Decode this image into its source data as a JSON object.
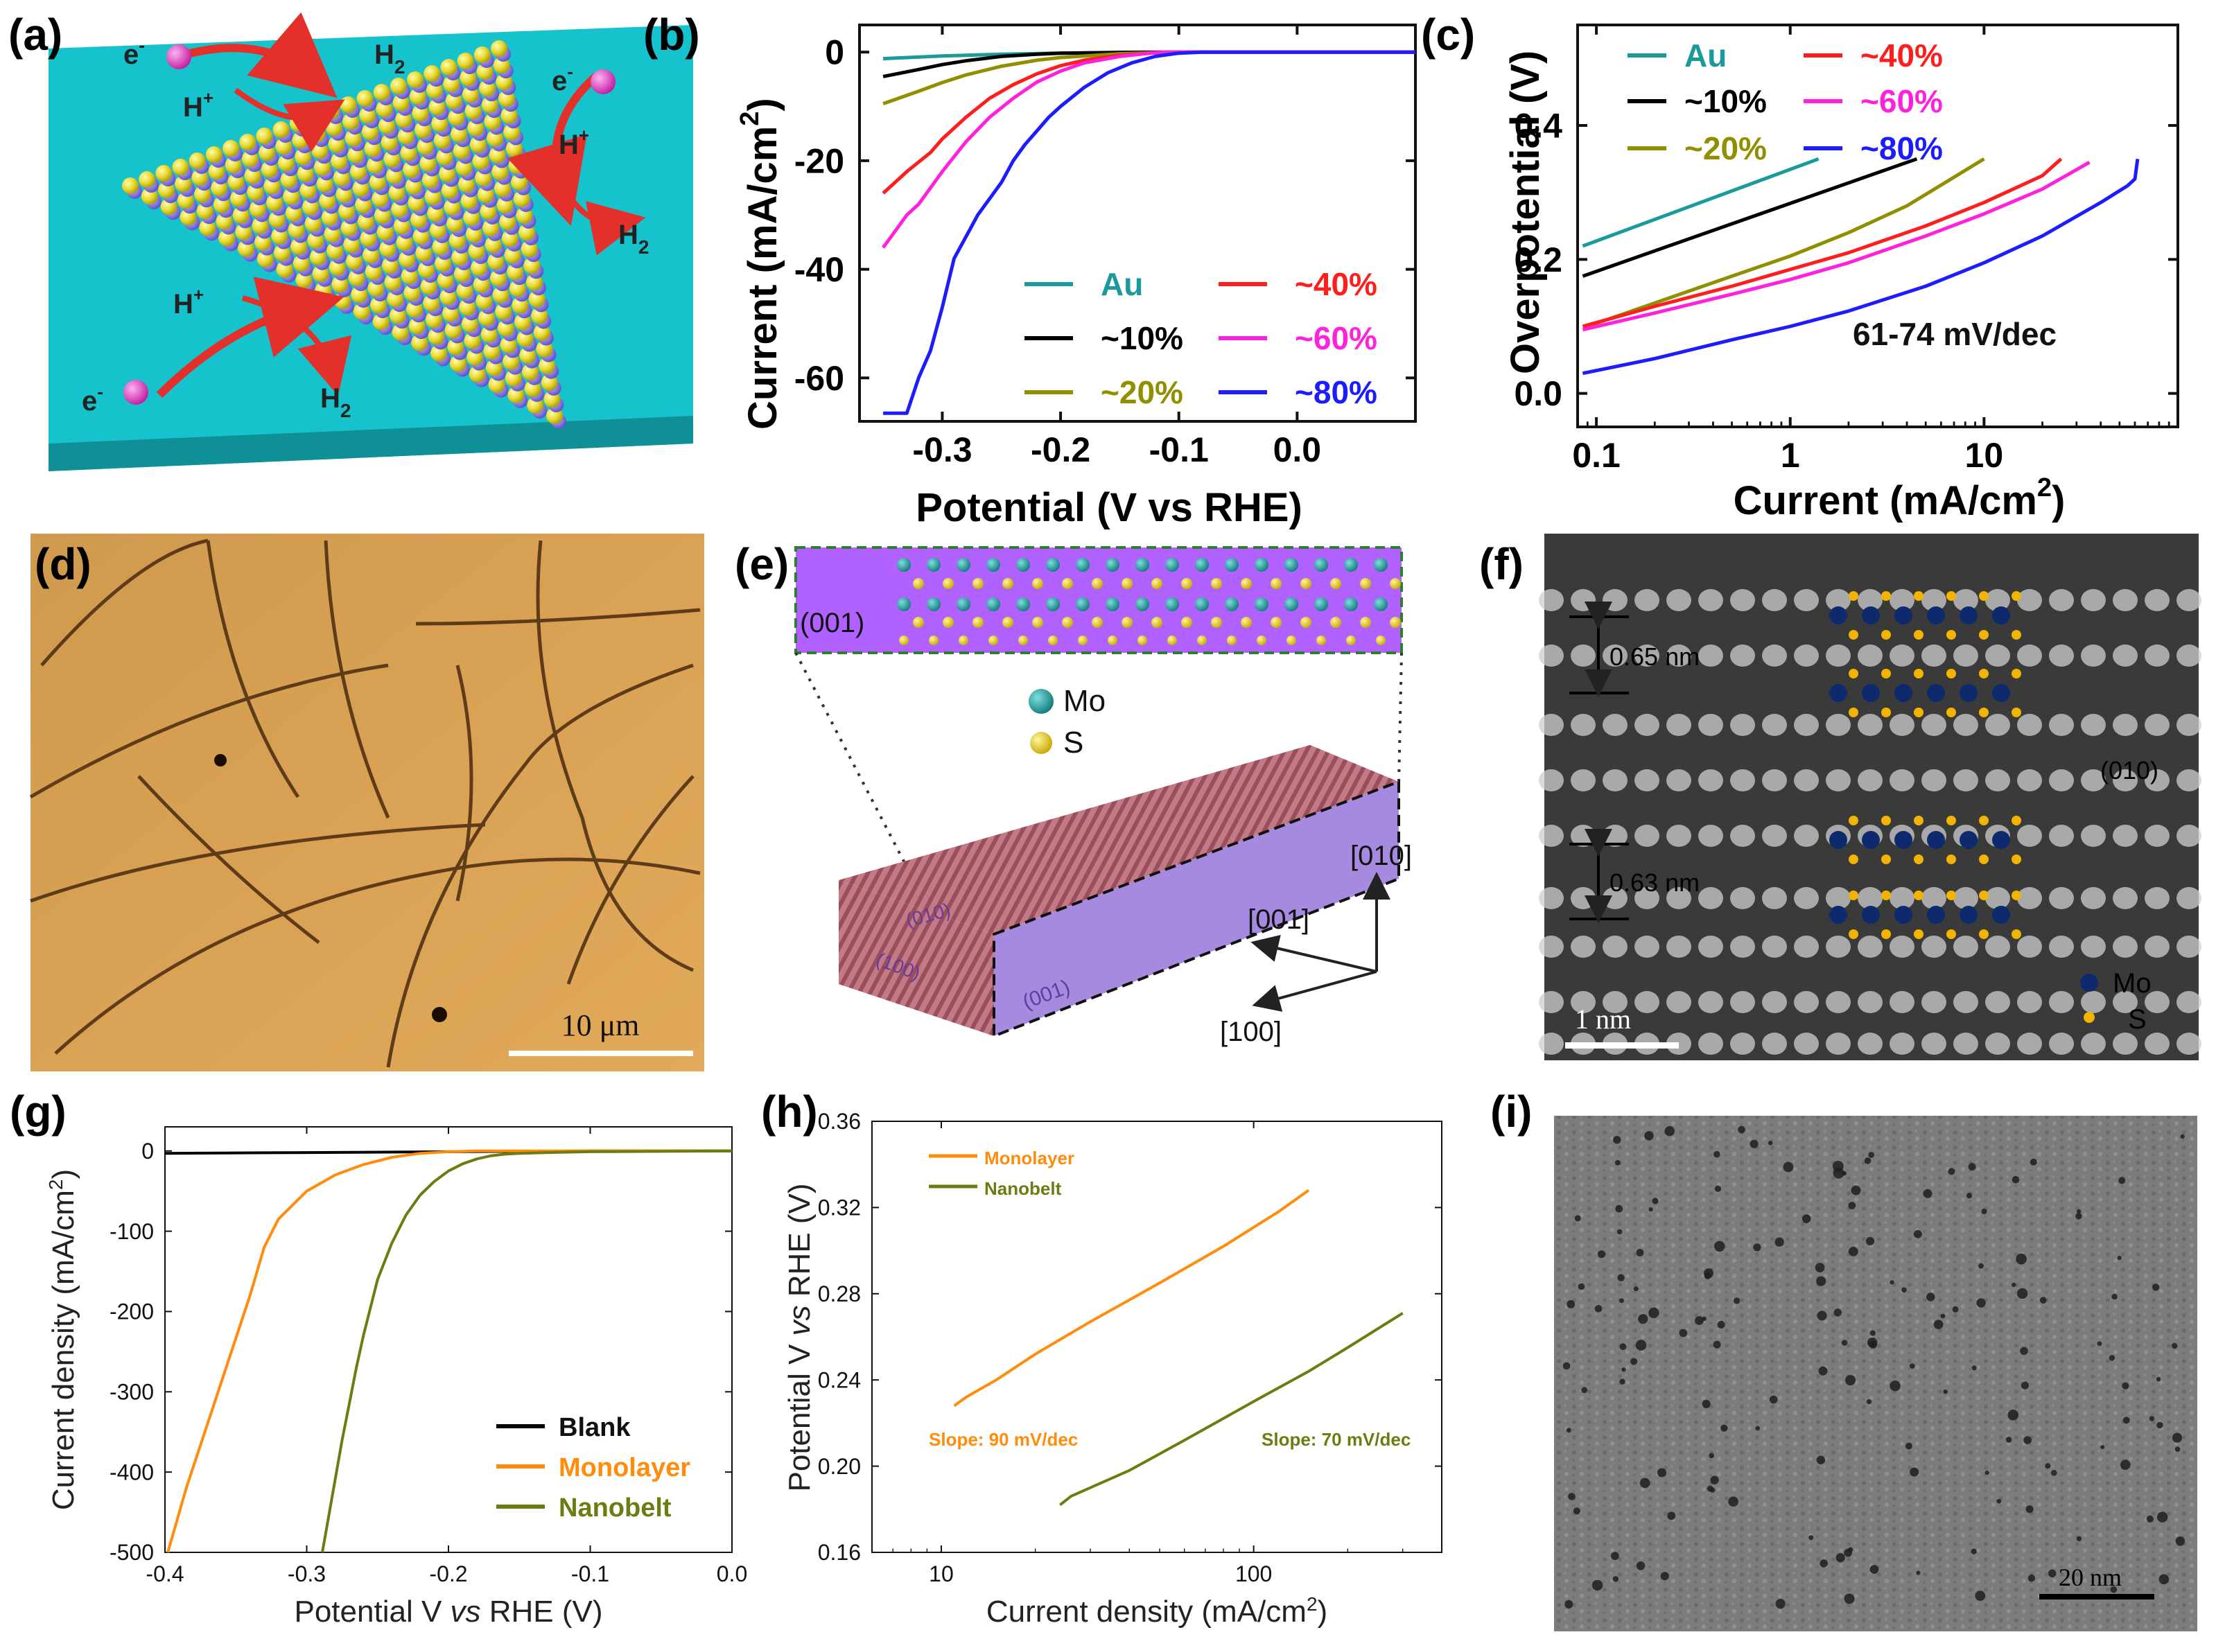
{
  "panels": {
    "a": {
      "label": "(a)",
      "electron": "e",
      "electron_sup": "-",
      "proton": "H",
      "proton_sup": "+",
      "h2": "H",
      "h2_sub": "2"
    },
    "b": {
      "label": "(b)"
    },
    "c": {
      "label": "(c)"
    },
    "d": {
      "label": "(d)",
      "scalebar": "10 μm"
    },
    "e": {
      "label": "(e)",
      "face": "(001)",
      "mo": "Mo",
      "s": "S",
      "dir010": "[010]",
      "dir001": "[001]",
      "dir100": "[100]",
      "face010": "(010)",
      "face100": "(100)",
      "face001b": "(001)"
    },
    "f": {
      "label": "(f)",
      "d1": "0.65 nm",
      "d2": "0.63 nm",
      "plane": "(010)",
      "mo": "Mo",
      "s": "S",
      "scalebar": "1 nm"
    },
    "g": {
      "label": "(g)"
    },
    "h": {
      "label": "(h)"
    },
    "i": {
      "label": "(i)",
      "scalebar": "20 nm"
    }
  },
  "colors": {
    "au": "#1a9a9a",
    "p10": "#000000",
    "p20": "#8f8f00",
    "p40": "#ff1e1e",
    "p60": "#ff22dd",
    "p80": "#1c1cff",
    "blank": "#000000",
    "monolayer": "#ff8c0a",
    "nanobelt": "#6b7d10"
  },
  "chart_data": [
    {
      "id": "b",
      "type": "line",
      "xlabel": "Potential (V vs RHE)",
      "ylabel": "Current (mA/cm",
      "ylabel_sup": "2",
      "ylabel_close": ")",
      "xlim": [
        -0.37,
        0.1
      ],
      "ylim": [
        -68,
        5
      ],
      "xticks": [
        "-0.3",
        "-0.2",
        "-0.1",
        "0.0"
      ],
      "xtick_values": [
        -0.3,
        -0.2,
        -0.1,
        0.0
      ],
      "yticks": [
        "0",
        "-20",
        "-40",
        "-60"
      ],
      "ytick_values": [
        0,
        -20,
        -40,
        -60
      ],
      "series": [
        {
          "name": "Au",
          "color_key": "au",
          "x": [
            -0.35,
            -0.3,
            -0.25,
            -0.2,
            -0.15,
            -0.1,
            0.0,
            0.1
          ],
          "y": [
            -1.2,
            -0.7,
            -0.4,
            -0.2,
            -0.1,
            0,
            0,
            0
          ]
        },
        {
          "name": "~10%",
          "color_key": "p10",
          "x": [
            -0.35,
            -0.32,
            -0.3,
            -0.28,
            -0.25,
            -0.22,
            -0.2,
            -0.15,
            -0.1,
            0.0,
            0.1
          ],
          "y": [
            -4.5,
            -3.2,
            -2.3,
            -1.6,
            -0.8,
            -0.4,
            -0.2,
            -0.05,
            0,
            0,
            0
          ]
        },
        {
          "name": "~20%",
          "color_key": "p20",
          "x": [
            -0.35,
            -0.32,
            -0.3,
            -0.28,
            -0.25,
            -0.22,
            -0.2,
            -0.15,
            -0.1,
            0.0,
            0.1
          ],
          "y": [
            -9.5,
            -7.2,
            -5.6,
            -4.2,
            -2.6,
            -1.5,
            -1,
            -0.3,
            0,
            0,
            0
          ]
        },
        {
          "name": "~40%",
          "color_key": "p40",
          "x": [
            -0.35,
            -0.33,
            -0.31,
            -0.3,
            -0.28,
            -0.26,
            -0.24,
            -0.22,
            -0.2,
            -0.18,
            -0.15,
            -0.12,
            -0.1,
            0.0,
            0.1
          ],
          "y": [
            -26,
            -22,
            -18.5,
            -16,
            -12,
            -8.5,
            -6,
            -4,
            -2.5,
            -1.5,
            -0.6,
            -0.1,
            0,
            0,
            0
          ]
        },
        {
          "name": "~60%",
          "color_key": "p60",
          "x": [
            -0.35,
            -0.34,
            -0.33,
            -0.32,
            -0.31,
            -0.3,
            -0.28,
            -0.26,
            -0.24,
            -0.22,
            -0.2,
            -0.18,
            -0.15,
            -0.12,
            -0.1,
            0.0,
            0.1
          ],
          "y": [
            -36,
            -33,
            -30,
            -28,
            -25,
            -22,
            -16.5,
            -12,
            -8.5,
            -5.5,
            -3.5,
            -2,
            -0.8,
            -0.1,
            0,
            0,
            0
          ]
        },
        {
          "name": "~80%",
          "color_key": "p80",
          "x": [
            -0.35,
            -0.33,
            -0.32,
            -0.31,
            -0.3,
            -0.29,
            -0.28,
            -0.27,
            -0.26,
            -0.25,
            -0.24,
            -0.23,
            -0.22,
            -0.21,
            -0.2,
            -0.18,
            -0.16,
            -0.14,
            -0.12,
            -0.1,
            -0.08,
            0.0,
            0.1
          ],
          "y": [
            -66.5,
            -66.5,
            -60,
            -55,
            -47,
            -38,
            -34,
            -30,
            -27,
            -24,
            -20,
            -17,
            -14.5,
            -12,
            -10,
            -6.5,
            -3.8,
            -2,
            -0.8,
            -0.2,
            0,
            0,
            0
          ]
        }
      ],
      "legend": [
        {
          "name": "Au",
          "color_key": "au"
        },
        {
          "name": "~40%",
          "color_key": "p40"
        },
        {
          "name": "~10%",
          "color_key": "p10"
        },
        {
          "name": "~60%",
          "color_key": "p60"
        },
        {
          "name": "~20%",
          "color_key": "p20"
        },
        {
          "name": "~80%",
          "color_key": "p80"
        }
      ]
    },
    {
      "id": "c",
      "type": "line",
      "xscale": "log",
      "xlabel": "Current (mA/cm",
      "xlabel_sup": "2",
      "xlabel_close": ")",
      "ylabel": "Overpotential (V)",
      "xlim": [
        0.08,
        100
      ],
      "ylim": [
        -0.05,
        0.55
      ],
      "xticks": [
        "0.1",
        "1",
        "10"
      ],
      "xtick_values": [
        0.1,
        1,
        10
      ],
      "yticks": [
        "0.0",
        "0.2",
        "0.4"
      ],
      "ytick_values": [
        0.0,
        0.2,
        0.4
      ],
      "annotation": "61-74 mV/dec",
      "series": [
        {
          "name": "Au",
          "color_key": "au",
          "x": [
            0.085,
            1.4
          ],
          "y": [
            0.22,
            0.35
          ]
        },
        {
          "name": "~10%",
          "color_key": "p10",
          "x": [
            0.085,
            4.5
          ],
          "y": [
            0.175,
            0.35
          ]
        },
        {
          "name": "~20%",
          "color_key": "p20",
          "x": [
            0.09,
            0.2,
            0.5,
            1,
            2,
            4,
            10
          ],
          "y": [
            0.1,
            0.135,
            0.175,
            0.205,
            0.24,
            0.28,
            0.35
          ]
        },
        {
          "name": "~40%",
          "color_key": "p40",
          "x": [
            0.085,
            0.2,
            0.5,
            1,
            2,
            5,
            10,
            20,
            25
          ],
          "y": [
            0.1,
            0.13,
            0.16,
            0.185,
            0.21,
            0.25,
            0.285,
            0.325,
            0.35
          ]
        },
        {
          "name": "~60%",
          "color_key": "p60",
          "x": [
            0.085,
            0.2,
            0.5,
            1,
            2,
            5,
            10,
            20,
            35
          ],
          "y": [
            0.095,
            0.12,
            0.148,
            0.17,
            0.195,
            0.235,
            0.268,
            0.305,
            0.345
          ]
        },
        {
          "name": "~80%",
          "color_key": "p80",
          "x": [
            0.085,
            0.2,
            0.5,
            1,
            2,
            5,
            10,
            20,
            40,
            55,
            60,
            62
          ],
          "y": [
            0.03,
            0.052,
            0.08,
            0.1,
            0.123,
            0.16,
            0.195,
            0.235,
            0.285,
            0.31,
            0.32,
            0.35
          ]
        }
      ],
      "legend": [
        {
          "name": "Au",
          "color_key": "au"
        },
        {
          "name": "~40%",
          "color_key": "p40"
        },
        {
          "name": "~10%",
          "color_key": "p10"
        },
        {
          "name": "~60%",
          "color_key": "p60"
        },
        {
          "name": "~20%",
          "color_key": "p20"
        },
        {
          "name": "~80%",
          "color_key": "p80"
        }
      ]
    },
    {
      "id": "g",
      "type": "line",
      "xlabel_pre": "Potential V ",
      "xlabel_it": "vs",
      "xlabel_post": " RHE (V)",
      "ylabel": "Current density (mA/cm",
      "ylabel_sup": "2",
      "ylabel_close": ")",
      "xlim": [
        -0.4,
        0.0
      ],
      "ylim": [
        -500,
        30
      ],
      "xticks": [
        "-0.4",
        "-0.3",
        "-0.2",
        "-0.1",
        "0.0"
      ],
      "xtick_values": [
        -0.4,
        -0.3,
        -0.2,
        -0.1,
        0.0
      ],
      "yticks": [
        "0",
        "-100",
        "-200",
        "-300",
        "-400",
        "-500"
      ],
      "ytick_values": [
        0,
        -100,
        -200,
        -300,
        -400,
        -500
      ],
      "series": [
        {
          "name": "Blank",
          "color_key": "blank",
          "x": [
            -0.4,
            -0.3,
            -0.2,
            -0.1,
            0.0
          ],
          "y": [
            -3,
            -2,
            -1,
            0,
            0
          ]
        },
        {
          "name": "Monolayer",
          "color_key": "monolayer",
          "x": [
            -0.398,
            -0.385,
            -0.37,
            -0.355,
            -0.34,
            -0.33,
            -0.32,
            -0.3,
            -0.28,
            -0.26,
            -0.24,
            -0.22,
            -0.2,
            -0.18,
            -0.16,
            -0.14,
            -0.1,
            0.0
          ],
          "y": [
            -500,
            -420,
            -340,
            -260,
            -180,
            -120,
            -85,
            -50,
            -30,
            -17,
            -8,
            -3,
            -1,
            0,
            0,
            0,
            0,
            0
          ]
        },
        {
          "name": "Nanobelt",
          "color_key": "nanobelt",
          "x": [
            -0.289,
            -0.285,
            -0.28,
            -0.275,
            -0.27,
            -0.265,
            -0.26,
            -0.255,
            -0.25,
            -0.24,
            -0.23,
            -0.22,
            -0.21,
            -0.2,
            -0.19,
            -0.18,
            -0.17,
            -0.16,
            -0.15,
            -0.13,
            -0.1,
            0.0
          ],
          "y": [
            -500,
            -460,
            -410,
            -360,
            -315,
            -270,
            -230,
            -195,
            -160,
            -115,
            -80,
            -55,
            -38,
            -25,
            -16,
            -10,
            -6,
            -4,
            -3,
            -2,
            -1,
            0
          ]
        }
      ],
      "legend": [
        {
          "name": "Blank",
          "color_key": "blank"
        },
        {
          "name": "Monolayer",
          "color_key": "monolayer"
        },
        {
          "name": "Nanobelt",
          "color_key": "nanobelt"
        }
      ]
    },
    {
      "id": "h",
      "type": "line",
      "xscale": "log",
      "xlabel": "Current density (mA/cm",
      "xlabel_sup": "2",
      "xlabel_close": ")",
      "ylabel_pre": "Potential V ",
      "ylabel_it": "vs",
      "ylabel_post": " RHE (V)",
      "xlim": [
        6,
        400
      ],
      "ylim": [
        0.16,
        0.36
      ],
      "xticks": [
        "10",
        "100"
      ],
      "xtick_values": [
        10,
        100
      ],
      "yticks": [
        "0.16",
        "0.20",
        "0.24",
        "0.28",
        "0.32",
        "0.36"
      ],
      "ytick_values": [
        0.16,
        0.2,
        0.24,
        0.28,
        0.32,
        0.36
      ],
      "annotations": [
        "Slope: 90 mV/dec",
        "Slope: 70 mV/dec"
      ],
      "series": [
        {
          "name": "Monolayer",
          "color_key": "monolayer",
          "x": [
            11,
            12,
            15,
            20,
            30,
            50,
            80,
            120,
            150
          ],
          "y": [
            0.228,
            0.232,
            0.24,
            0.252,
            0.267,
            0.285,
            0.302,
            0.318,
            0.328
          ]
        },
        {
          "name": "Nanobelt",
          "color_key": "nanobelt",
          "x": [
            24,
            26,
            30,
            40,
            60,
            100,
            150,
            200,
            300
          ],
          "y": [
            0.182,
            0.186,
            0.19,
            0.198,
            0.212,
            0.23,
            0.244,
            0.255,
            0.271
          ]
        }
      ],
      "legend": [
        {
          "name": "Monolayer",
          "color_key": "monolayer"
        },
        {
          "name": "Nanobelt",
          "color_key": "nanobelt"
        }
      ]
    }
  ]
}
